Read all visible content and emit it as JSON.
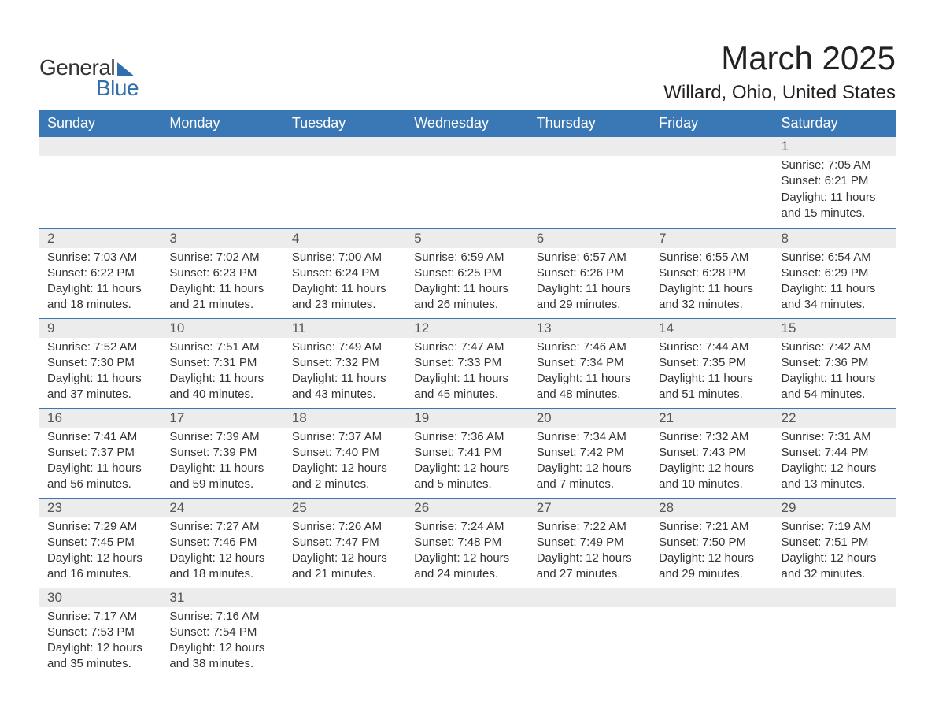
{
  "brand": {
    "text_general": "General",
    "text_blue": "Blue",
    "accent_color": "#2f6fad"
  },
  "title": "March 2025",
  "location": "Willard, Ohio, United States",
  "header_bg": "#3a78b5",
  "header_text_color": "#ffffff",
  "daynum_bg": "#ececec",
  "divider_color": "#3a78b5",
  "text_color": "#333333",
  "font_family": "Arial",
  "day_headers": [
    "Sunday",
    "Monday",
    "Tuesday",
    "Wednesday",
    "Thursday",
    "Friday",
    "Saturday"
  ],
  "weeks": [
    [
      null,
      null,
      null,
      null,
      null,
      null,
      {
        "n": "1",
        "sunrise": "7:05 AM",
        "sunset": "6:21 PM",
        "daylight": "11 hours and 15 minutes."
      }
    ],
    [
      {
        "n": "2",
        "sunrise": "7:03 AM",
        "sunset": "6:22 PM",
        "daylight": "11 hours and 18 minutes."
      },
      {
        "n": "3",
        "sunrise": "7:02 AM",
        "sunset": "6:23 PM",
        "daylight": "11 hours and 21 minutes."
      },
      {
        "n": "4",
        "sunrise": "7:00 AM",
        "sunset": "6:24 PM",
        "daylight": "11 hours and 23 minutes."
      },
      {
        "n": "5",
        "sunrise": "6:59 AM",
        "sunset": "6:25 PM",
        "daylight": "11 hours and 26 minutes."
      },
      {
        "n": "6",
        "sunrise": "6:57 AM",
        "sunset": "6:26 PM",
        "daylight": "11 hours and 29 minutes."
      },
      {
        "n": "7",
        "sunrise": "6:55 AM",
        "sunset": "6:28 PM",
        "daylight": "11 hours and 32 minutes."
      },
      {
        "n": "8",
        "sunrise": "6:54 AM",
        "sunset": "6:29 PM",
        "daylight": "11 hours and 34 minutes."
      }
    ],
    [
      {
        "n": "9",
        "sunrise": "7:52 AM",
        "sunset": "7:30 PM",
        "daylight": "11 hours and 37 minutes."
      },
      {
        "n": "10",
        "sunrise": "7:51 AM",
        "sunset": "7:31 PM",
        "daylight": "11 hours and 40 minutes."
      },
      {
        "n": "11",
        "sunrise": "7:49 AM",
        "sunset": "7:32 PM",
        "daylight": "11 hours and 43 minutes."
      },
      {
        "n": "12",
        "sunrise": "7:47 AM",
        "sunset": "7:33 PM",
        "daylight": "11 hours and 45 minutes."
      },
      {
        "n": "13",
        "sunrise": "7:46 AM",
        "sunset": "7:34 PM",
        "daylight": "11 hours and 48 minutes."
      },
      {
        "n": "14",
        "sunrise": "7:44 AM",
        "sunset": "7:35 PM",
        "daylight": "11 hours and 51 minutes."
      },
      {
        "n": "15",
        "sunrise": "7:42 AM",
        "sunset": "7:36 PM",
        "daylight": "11 hours and 54 minutes."
      }
    ],
    [
      {
        "n": "16",
        "sunrise": "7:41 AM",
        "sunset": "7:37 PM",
        "daylight": "11 hours and 56 minutes."
      },
      {
        "n": "17",
        "sunrise": "7:39 AM",
        "sunset": "7:39 PM",
        "daylight": "11 hours and 59 minutes."
      },
      {
        "n": "18",
        "sunrise": "7:37 AM",
        "sunset": "7:40 PM",
        "daylight": "12 hours and 2 minutes."
      },
      {
        "n": "19",
        "sunrise": "7:36 AM",
        "sunset": "7:41 PM",
        "daylight": "12 hours and 5 minutes."
      },
      {
        "n": "20",
        "sunrise": "7:34 AM",
        "sunset": "7:42 PM",
        "daylight": "12 hours and 7 minutes."
      },
      {
        "n": "21",
        "sunrise": "7:32 AM",
        "sunset": "7:43 PM",
        "daylight": "12 hours and 10 minutes."
      },
      {
        "n": "22",
        "sunrise": "7:31 AM",
        "sunset": "7:44 PM",
        "daylight": "12 hours and 13 minutes."
      }
    ],
    [
      {
        "n": "23",
        "sunrise": "7:29 AM",
        "sunset": "7:45 PM",
        "daylight": "12 hours and 16 minutes."
      },
      {
        "n": "24",
        "sunrise": "7:27 AM",
        "sunset": "7:46 PM",
        "daylight": "12 hours and 18 minutes."
      },
      {
        "n": "25",
        "sunrise": "7:26 AM",
        "sunset": "7:47 PM",
        "daylight": "12 hours and 21 minutes."
      },
      {
        "n": "26",
        "sunrise": "7:24 AM",
        "sunset": "7:48 PM",
        "daylight": "12 hours and 24 minutes."
      },
      {
        "n": "27",
        "sunrise": "7:22 AM",
        "sunset": "7:49 PM",
        "daylight": "12 hours and 27 minutes."
      },
      {
        "n": "28",
        "sunrise": "7:21 AM",
        "sunset": "7:50 PM",
        "daylight": "12 hours and 29 minutes."
      },
      {
        "n": "29",
        "sunrise": "7:19 AM",
        "sunset": "7:51 PM",
        "daylight": "12 hours and 32 minutes."
      }
    ],
    [
      {
        "n": "30",
        "sunrise": "7:17 AM",
        "sunset": "7:53 PM",
        "daylight": "12 hours and 35 minutes."
      },
      {
        "n": "31",
        "sunrise": "7:16 AM",
        "sunset": "7:54 PM",
        "daylight": "12 hours and 38 minutes."
      },
      null,
      null,
      null,
      null,
      null
    ]
  ],
  "labels": {
    "sunrise": "Sunrise: ",
    "sunset": "Sunset: ",
    "daylight": "Daylight: "
  }
}
